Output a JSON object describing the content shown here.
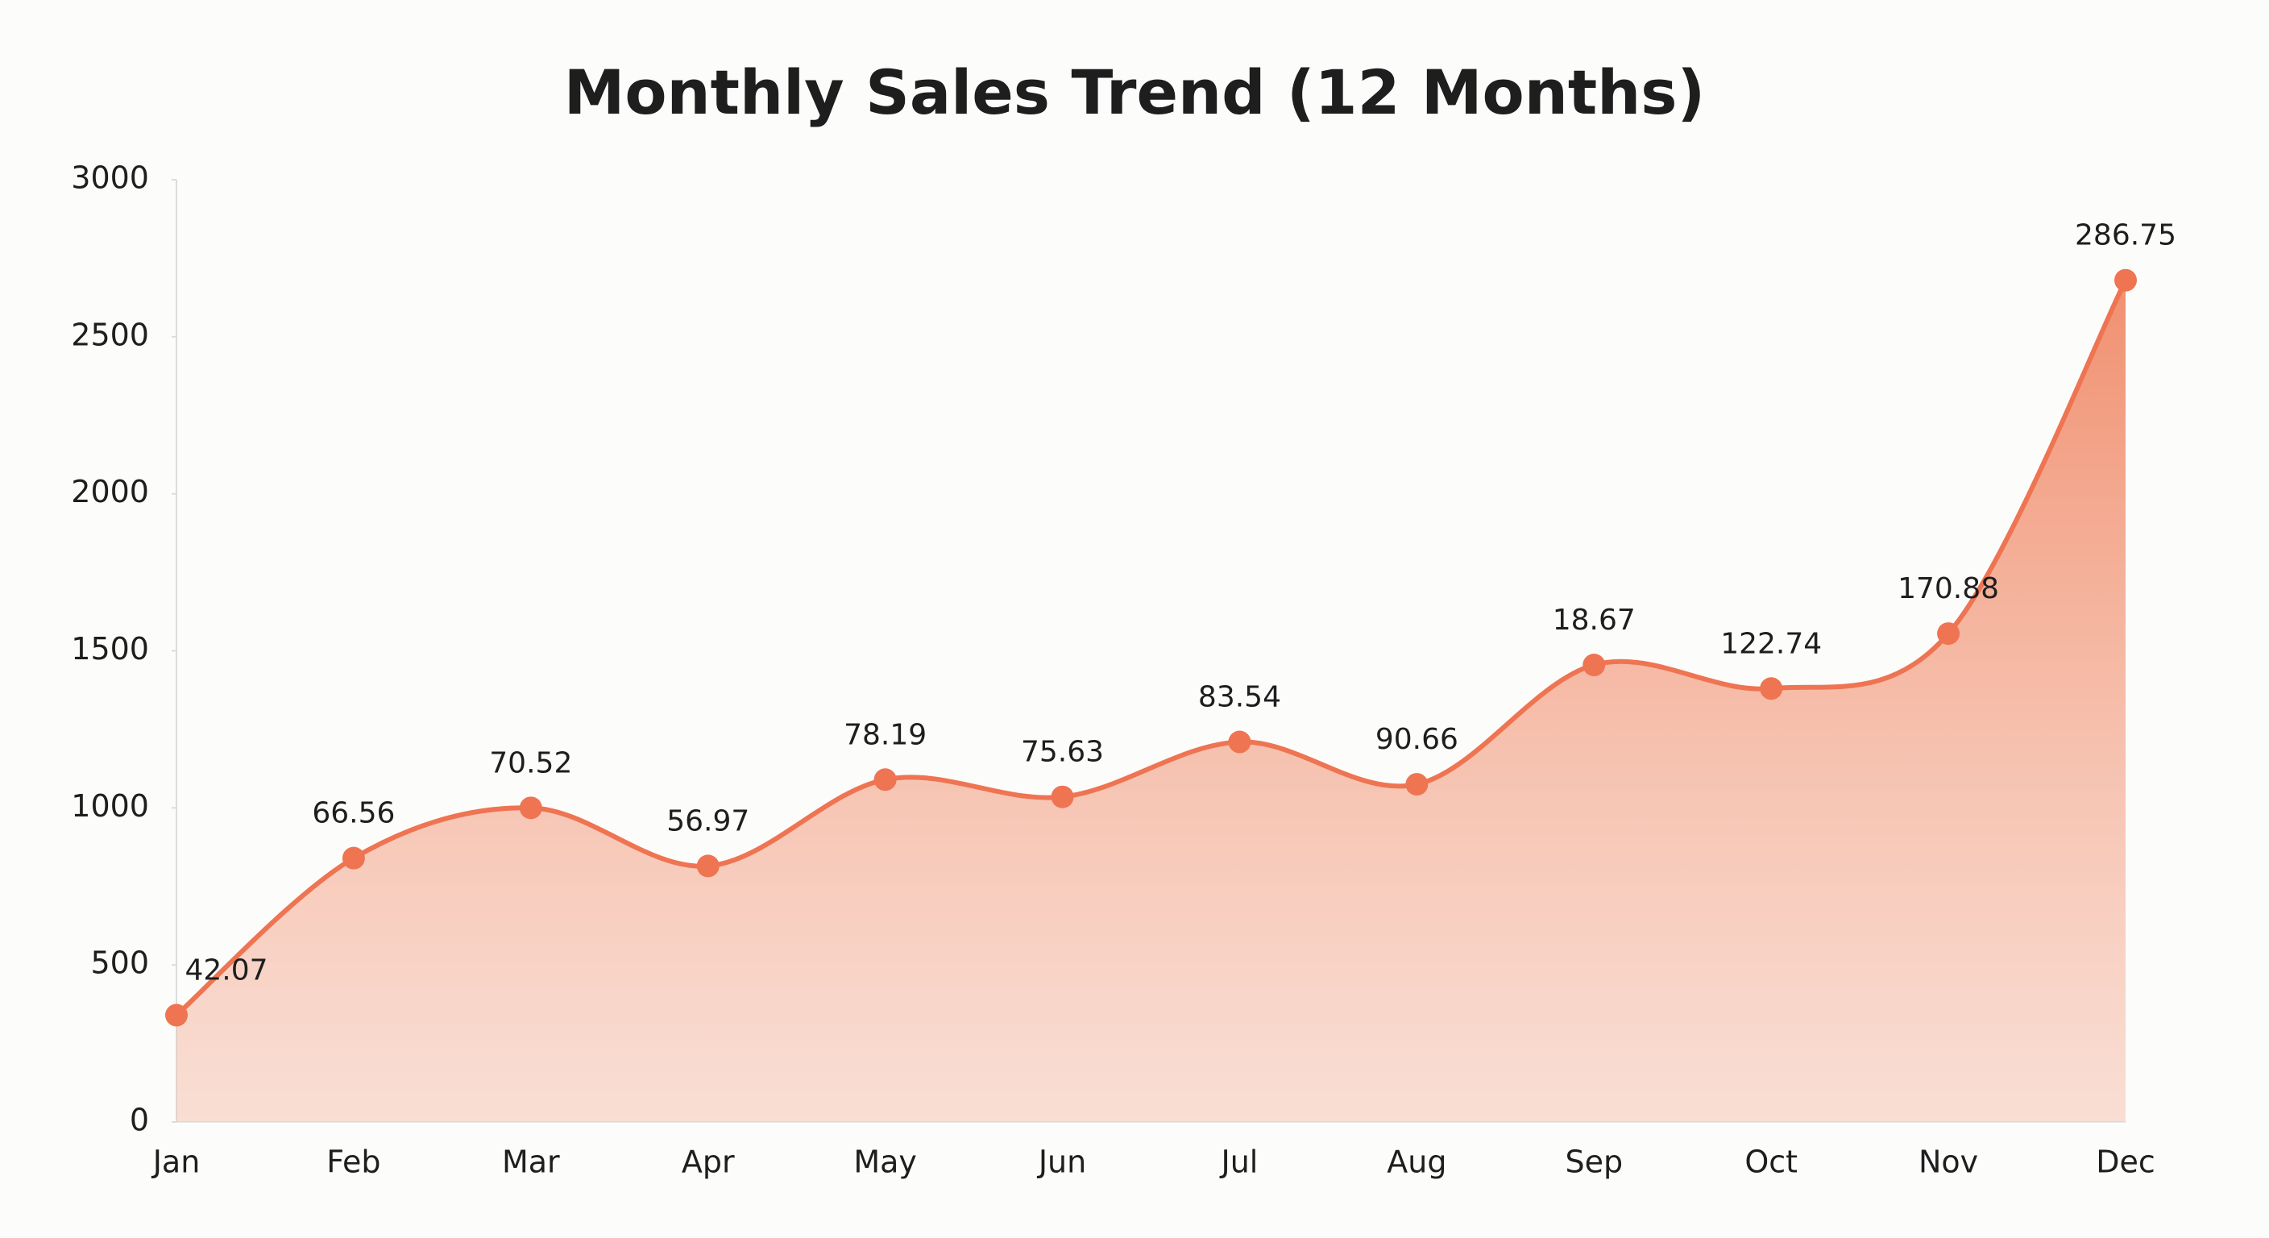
{
  "chart_data": {
    "type": "area",
    "title": "Monthly Sales Trend (12 Months)",
    "categories": [
      "Jan",
      "Feb",
      "Mar",
      "Apr",
      "May",
      "Jun",
      "Jul",
      "Aug",
      "Sep",
      "Oct",
      "Nov",
      "Dec"
    ],
    "values": [
      340,
      840,
      1000,
      815,
      1090,
      1035,
      1210,
      1075,
      1455,
      1380,
      1555,
      2680
    ],
    "annotations": [
      "42.07",
      "66.56",
      "70.52",
      "56.97",
      "78.19",
      "75.63",
      "83.54",
      "90.66",
      "18.67",
      "122.74",
      "170.88",
      "286.75"
    ],
    "color": "#ee7452",
    "ylim": [
      0,
      3000
    ],
    "yticks": [
      0,
      500,
      1000,
      1500,
      2000,
      2500,
      3000
    ],
    "grid": false
  }
}
